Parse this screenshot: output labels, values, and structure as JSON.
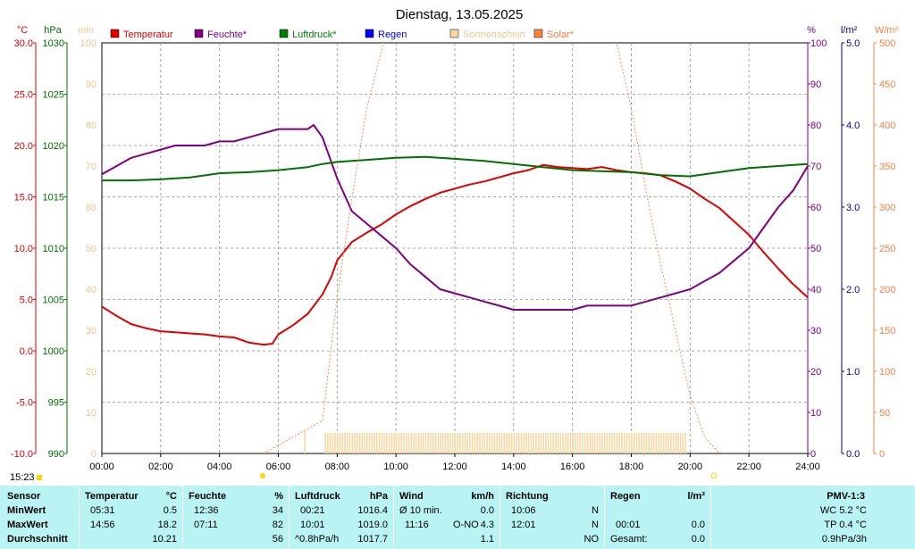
{
  "title": "Dienstag, 13.05.2025",
  "time_marker": "15:23",
  "units": {
    "temp": "°C",
    "pressure": "hPa",
    "sun": "min",
    "humidity": "%",
    "rain": "l/m²",
    "solar": "W/m²"
  },
  "legend": [
    {
      "label": "Temperatur",
      "color": "#e00000"
    },
    {
      "label": "Feuchte*",
      "color": "#800080"
    },
    {
      "label": "Luftdruck*",
      "color": "#008000"
    },
    {
      "label": "Regen",
      "color": "#0000ff"
    },
    {
      "label": "Sonnenschein",
      "color": "#f7d9a3"
    },
    {
      "label": "Solar*",
      "color": "#ff8040"
    }
  ],
  "colors": {
    "temp": "#e00000",
    "hum": "#800080",
    "press": "#007000",
    "rain": "#000099",
    "sun_axis": "#f0c890",
    "solar": "#ff8040",
    "sun_bar": "#f7d9a3",
    "grid": "#909090",
    "table_bg": "#b9f3f3"
  },
  "chart_data": {
    "type": "line",
    "title": "Dienstag, 13.05.2025",
    "x_ticks": [
      "00:00",
      "02:00",
      "04:00",
      "06:00",
      "08:00",
      "10:00",
      "12:00",
      "14:00",
      "16:00",
      "18:00",
      "20:00",
      "22:00",
      "24:00"
    ],
    "x_range_hours": [
      0,
      24
    ],
    "axes": {
      "temp": {
        "unit": "°C",
        "range": [
          -10,
          30
        ],
        "ticks": [
          "30.0",
          "25.0",
          "20.0",
          "15.0",
          "10.0",
          "5.0",
          "0.0",
          "-5.0",
          "-10.0"
        ]
      },
      "pressure": {
        "unit": "hPa",
        "range": [
          990,
          1030
        ],
        "ticks": [
          "1030",
          "1025",
          "1020",
          "1015",
          "1010",
          "1005",
          "1000",
          "995",
          "990"
        ]
      },
      "sunshine": {
        "unit": "min",
        "range": [
          0,
          100
        ],
        "ticks": [
          "100",
          "90",
          "80",
          "70",
          "60",
          "50",
          "40",
          "30",
          "20",
          "10",
          "0"
        ]
      },
      "humidity": {
        "unit": "%",
        "range": [
          0,
          100
        ],
        "ticks": [
          "100",
          "90",
          "80",
          "70",
          "60",
          "50",
          "40",
          "30",
          "20",
          "10",
          "0"
        ]
      },
      "rain": {
        "unit": "l/m²",
        "range": [
          0,
          5
        ],
        "ticks": [
          "5.0",
          "4.0",
          "3.0",
          "2.0",
          "1.0",
          "0.0"
        ]
      },
      "solar": {
        "unit": "W/m²",
        "range": [
          0,
          500
        ],
        "ticks": [
          "500",
          "450",
          "400",
          "350",
          "300",
          "250",
          "200",
          "150",
          "100",
          "50",
          "0"
        ]
      }
    },
    "series": [
      {
        "name": "Temperatur",
        "axis": "temp",
        "x": [
          0,
          0.5,
          1,
          1.5,
          2,
          2.5,
          3,
          3.5,
          4,
          4.5,
          5,
          5.5,
          5.8,
          6,
          6.5,
          7,
          7.5,
          7.8,
          8,
          8.5,
          9,
          9.5,
          10,
          10.5,
          11,
          11.5,
          12,
          12.5,
          13,
          13.5,
          14,
          14.5,
          15,
          15.5,
          16,
          16.5,
          17,
          17.5,
          18,
          18.5,
          19,
          19.5,
          20,
          20.5,
          21,
          21.5,
          22,
          22.5,
          23,
          23.5,
          24
        ],
        "y": [
          4.3,
          3.4,
          2.6,
          2.2,
          1.9,
          1.8,
          1.7,
          1.6,
          1.4,
          1.3,
          0.8,
          0.6,
          0.7,
          1.6,
          2.5,
          3.6,
          5.5,
          7.2,
          8.8,
          10.6,
          11.5,
          12.3,
          13.3,
          14.1,
          14.8,
          15.4,
          15.8,
          16.2,
          16.5,
          16.9,
          17.3,
          17.6,
          18.1,
          17.9,
          17.8,
          17.7,
          17.9,
          17.6,
          17.4,
          17.3,
          17.1,
          16.5,
          15.8,
          14.8,
          13.9,
          12.6,
          11.3,
          9.6,
          8.0,
          6.5,
          5.2
        ]
      },
      {
        "name": "Feuchte*",
        "axis": "humidity",
        "x": [
          0,
          0.5,
          1,
          1.5,
          2,
          2.5,
          3,
          3.5,
          4,
          4.5,
          5,
          5.5,
          6,
          6.5,
          7,
          7.2,
          7.5,
          8,
          8.5,
          9,
          9.5,
          10,
          10.5,
          11,
          11.5,
          12,
          12.5,
          13,
          13.5,
          14,
          14.5,
          15,
          15.5,
          16,
          16.5,
          17,
          17.5,
          18,
          18.5,
          19,
          19.5,
          20,
          20.5,
          21,
          21.5,
          22,
          22.5,
          23,
          23.5,
          24
        ],
        "y": [
          68,
          70,
          72,
          73,
          74,
          75,
          75,
          75,
          76,
          76,
          77,
          78,
          79,
          79,
          79,
          80,
          77,
          67,
          59,
          56,
          53,
          50,
          46,
          43,
          40,
          39,
          38,
          37,
          36,
          35,
          35,
          35,
          35,
          35,
          36,
          36,
          36,
          36,
          37,
          38,
          39,
          40,
          42,
          44,
          47,
          50,
          55,
          60,
          64,
          70
        ]
      },
      {
        "name": "Luftdruck*",
        "axis": "pressure",
        "x": [
          0,
          1,
          2,
          3,
          4,
          5,
          6,
          7,
          7.5,
          8,
          9,
          10,
          11,
          12,
          13,
          14,
          15,
          16,
          17,
          18,
          19,
          20,
          21,
          22,
          23,
          24
        ],
        "y": [
          1016.6,
          1016.6,
          1016.7,
          1016.9,
          1017.3,
          1017.4,
          1017.6,
          1017.9,
          1018.2,
          1018.4,
          1018.6,
          1018.8,
          1018.9,
          1018.7,
          1018.5,
          1018.2,
          1017.9,
          1017.6,
          1017.5,
          1017.4,
          1017.1,
          1017.0,
          1017.4,
          1017.8,
          1018.0,
          1018.2
        ]
      },
      {
        "name": "Solar*",
        "axis": "solar",
        "x": [
          5.5,
          6,
          6.5,
          7,
          7.5,
          8,
          8.5,
          9,
          9.5,
          10,
          17.5,
          18,
          18.5,
          19,
          19.5,
          20,
          20.5,
          21
        ],
        "y": [
          0,
          10,
          20,
          30,
          40,
          190,
          310,
          420,
          490,
          560,
          500,
          420,
          320,
          230,
          150,
          70,
          20,
          0
        ]
      },
      {
        "name": "Sonnenschein",
        "axis": "sunshine",
        "type": "bar",
        "x_start": 7.6,
        "x_end": 19.85,
        "value": 5,
        "extra": [
          {
            "x": 6.9,
            "value": 6
          }
        ]
      }
    ]
  },
  "table": {
    "row_labels": [
      "Sensor",
      "MinWert",
      "MaxWert",
      "Durchschnitt"
    ],
    "temperatur": {
      "header": "Temperatur",
      "unit": "°C",
      "min_time": "05:31",
      "min": "0.5",
      "max_time": "14:56",
      "max": "18.2",
      "avg": "10.21"
    },
    "feuchte": {
      "header": "Feuchte",
      "unit": "%",
      "min_time": "12:36",
      "min": "34",
      "max_time": "07:11",
      "max": "82",
      "avg": "56"
    },
    "luftdruck": {
      "header": "Luftdruck",
      "unit": "hPa",
      "min_time": "00:21",
      "min": "1016.4",
      "max_time": "10:01",
      "max": "1019.0",
      "avg_label": "^0.8hPa/h",
      "avg": "1017.7"
    },
    "wind": {
      "header": "Wind",
      "unit": "km/h",
      "min_time": "Ø 10 min.",
      "min": "0.0",
      "max_time": "11:16",
      "max_dir": "O-NO",
      "max": "4.3",
      "avg": "1.1"
    },
    "richtung": {
      "header": "Richtung",
      "min_time": "10:06",
      "min": "N",
      "max_time": "12:01",
      "max": "N",
      "avg": "NO"
    },
    "regen": {
      "header": "Regen",
      "unit": "l/m²",
      "max_time": "00:01",
      "max": "0.0",
      "avg_label": "Gesamt:",
      "avg": "0.0"
    },
    "pmv": {
      "header": "PMV-1:3",
      "min": "WC 5.2 °C",
      "max": "TP 0.4 °C",
      "avg": "0.9hPa/3h"
    }
  }
}
